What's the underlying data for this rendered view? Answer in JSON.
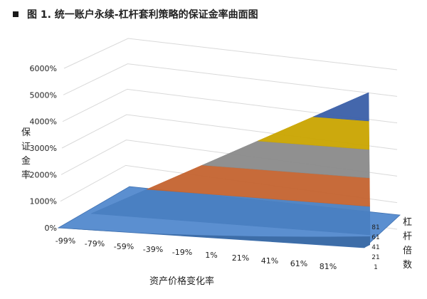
{
  "page": {
    "bullet_icon": "square-bullet-icon"
  },
  "chart_data": {
    "type": "surface-3d",
    "title": "图 1. 统一账户永续-杠杆套利策略的保证金率曲面图",
    "zlabel": "保证金率",
    "xlabel": "资产价格变化率",
    "ylabel": "杠杆倍数",
    "z_ticks": [
      "0%",
      "1000%",
      "2000%",
      "3000%",
      "4000%",
      "5000%",
      "6000%"
    ],
    "zlim": [
      0,
      6000
    ],
    "x_ticks": [
      "-99%",
      "-79%",
      "-59%",
      "-39%",
      "-19%",
      "1%",
      "21%",
      "41%",
      "61%",
      "81%"
    ],
    "xlim": [
      -99,
      99
    ],
    "y_ticks": [
      "1",
      "21",
      "41",
      "61",
      "81"
    ],
    "ylim": [
      1,
      100
    ],
    "z_bands": [
      {
        "range": [
          0,
          1000
        ],
        "color": "#4a7fc1"
      },
      {
        "range": [
          1000,
          2000
        ],
        "color": "#c4632f"
      },
      {
        "range": [
          2000,
          3000
        ],
        "color": "#8a8a8a"
      },
      {
        "range": [
          3000,
          4000
        ],
        "color": "#c9a400"
      },
      {
        "range": [
          4000,
          5000
        ],
        "color": "#3a5fa8"
      },
      {
        "range": [
          5000,
          6000
        ],
        "color": "#5e8b3a"
      }
    ],
    "peak": {
      "x": 99,
      "y": 1,
      "z": 5000
    }
  }
}
